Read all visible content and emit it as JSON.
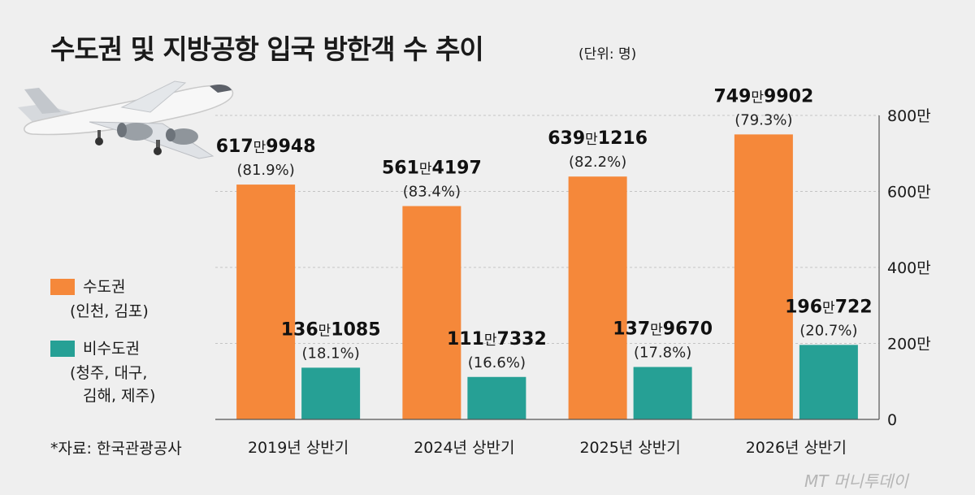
{
  "title": "수도권 및 지방공항 입국 방한객 수 추이",
  "unit": "(단위: 명)",
  "source": "*자료: 한국관광공사",
  "watermark": "MT 머니투데이",
  "colors": {
    "metro": "#f5883a",
    "regional": "#26a095",
    "grid": "#c4c4c4",
    "background": "#efefef"
  },
  "legend": {
    "metro_name": "수도권",
    "metro_detail": "(인천, 김포)",
    "regional_name": "비수도권",
    "regional_detail_1": "(청주, 대구,",
    "regional_detail_2": "김해, 제주)"
  },
  "chart_data": {
    "type": "bar",
    "categories": [
      "2019년 상반기",
      "2024년 상반기",
      "2025년 상반기",
      "2026년 상반기"
    ],
    "series": [
      {
        "name": "수도권 (인천, 김포)",
        "values": [
          6179948,
          5614197,
          6391216,
          7499902
        ],
        "labels_main": [
          "617",
          "561",
          "639",
          "749"
        ],
        "labels_rest": [
          "9948",
          "4197",
          "1216",
          "9902"
        ],
        "shares": [
          "(81.9%)",
          "(83.4%)",
          "(82.2%)",
          "(79.3%)"
        ]
      },
      {
        "name": "비수도권 (청주, 대구, 김해, 제주)",
        "values": [
          1361085,
          1117332,
          1379670,
          1960722
        ],
        "labels_main": [
          "136",
          "111",
          "137",
          "196"
        ],
        "labels_rest": [
          "1085",
          "7332",
          "9670",
          "722"
        ],
        "shares": [
          "(18.1%)",
          "(16.6%)",
          "(17.8%)",
          "(20.7%)"
        ]
      }
    ],
    "label_unit": "만",
    "ylim": [
      0,
      8000000
    ],
    "yticks": [
      0,
      2000000,
      4000000,
      6000000,
      8000000
    ],
    "ytick_labels": [
      "0",
      "200만",
      "400만",
      "600만",
      "800만"
    ],
    "grid": true,
    "legend_position": "left"
  }
}
